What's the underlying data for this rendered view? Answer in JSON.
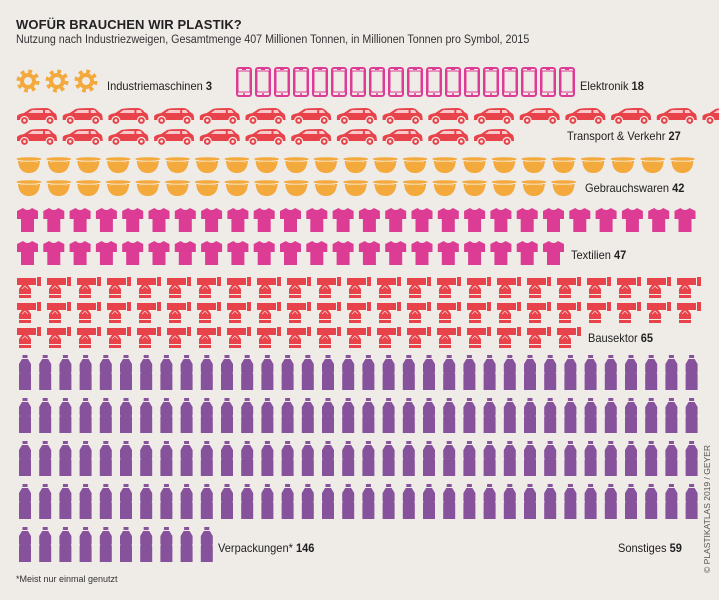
{
  "header": {
    "title": "WOFÜR BRAUCHEN WIR PLASTIK?",
    "subtitle": "Nutzung nach Industriezweigen, Gesamtmenge 407 Millionen Tonnen, in Millionen Tonnen pro Symbol, 2015"
  },
  "footnote": "*Meist nur einmal genutzt",
  "credit": "© PLASTIKATLAS 2019 / GEYER",
  "chart_data": {
    "type": "pictogram",
    "title": "WOFÜR BRAUCHEN WIR PLASTIK?",
    "unit": "Millionen Tonnen pro Symbol",
    "total": 407,
    "categories": [
      {
        "key": "industriemaschinen",
        "label": "Industriemaschinen",
        "value": 3,
        "icon": "gear-icon",
        "color": "#f3a93b"
      },
      {
        "key": "elektronik",
        "label": "Elektronik",
        "value": 18,
        "icon": "smartphone-icon",
        "color": "#dc3c93"
      },
      {
        "key": "transport",
        "label": "Transport & Verkehr",
        "value": 27,
        "icon": "car-icon",
        "color": "#e8434a"
      },
      {
        "key": "gebrauchswaren",
        "label": "Gebrauchswaren",
        "value": 42,
        "icon": "bowl-icon",
        "color": "#f3a93b"
      },
      {
        "key": "textilien",
        "label": "Textilien",
        "value": 47,
        "icon": "tshirt-icon",
        "color": "#dc3c93"
      },
      {
        "key": "bausektor",
        "label": "Bausektor",
        "value": 65,
        "icon": "pipe-fitting-icon",
        "color": "#e8434a"
      },
      {
        "key": "verpackungen",
        "label": "Verpackungen*",
        "value": 146,
        "icon": "bottle-icon",
        "color": "#86529b"
      },
      {
        "key": "sonstiges",
        "label": "Sonstiges",
        "value": 59,
        "icon": "",
        "color": ""
      }
    ]
  }
}
